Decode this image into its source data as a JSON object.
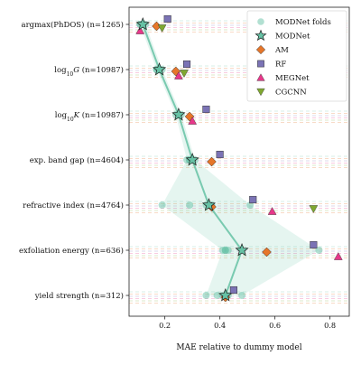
{
  "chart_data": {
    "type": "scatter",
    "title": "",
    "xlabel": "MAE relative to dummy model",
    "ylabel": "",
    "xlim": [
      0.07,
      0.87
    ],
    "x_ticks": [
      0.2,
      0.4,
      0.6,
      0.8
    ],
    "x_tick_labels": [
      "0.2",
      "0.4",
      "0.6",
      "0.8"
    ],
    "grid": false,
    "legend_position": "top-right",
    "categories": [
      "argmax(PhDOS) (n=1265)",
      "log10G (n=10987)",
      "log10K (n=10987)",
      "exp. band gap (n=4604)",
      "refractive index (n=4764)",
      "exfoliation energy (n=636)",
      "yield strength (n=312)"
    ],
    "category_display": [
      {
        "pre": "argmax(PhDOS) (n=1265)",
        "sub": "",
        "post": ""
      },
      {
        "pre": "log",
        "sub": "10",
        "mid": "G",
        "post": " (n=10987)"
      },
      {
        "pre": "log",
        "sub": "10",
        "mid": "K",
        "post": " (n=10987)"
      },
      {
        "pre": "exp. band gap (n=4604)",
        "sub": "",
        "post": ""
      },
      {
        "pre": "refractive index (n=4764)",
        "sub": "",
        "post": ""
      },
      {
        "pre": "exfoliation energy (n=636)",
        "sub": "",
        "post": ""
      },
      {
        "pre": "yield strength (n=312)",
        "sub": "",
        "post": ""
      }
    ],
    "series": [
      {
        "name": "MODNet folds",
        "marker": "circle-faint",
        "color": "#66c2a5",
        "folds": [
          [
            0.11,
            0.12,
            0.13,
            0.12,
            0.11
          ],
          [
            0.17,
            0.18,
            0.19,
            0.18,
            0.17
          ],
          [
            0.24,
            0.25,
            0.26,
            0.25,
            0.25
          ],
          [
            0.28,
            0.29,
            0.31,
            0.3,
            0.29
          ],
          [
            0.19,
            0.29,
            0.35,
            0.37,
            0.51
          ],
          [
            0.41,
            0.42,
            0.43,
            0.42,
            0.76
          ],
          [
            0.35,
            0.39,
            0.41,
            0.43,
            0.48
          ]
        ]
      },
      {
        "name": "MODNet",
        "marker": "star",
        "color": "#66c2a5",
        "values": [
          0.12,
          0.18,
          0.25,
          0.3,
          0.36,
          0.48,
          0.42
        ]
      },
      {
        "name": "AM",
        "marker": "diamond",
        "color": "#e6762a",
        "values": [
          0.17,
          0.24,
          0.29,
          0.37,
          0.37,
          0.57,
          0.42
        ]
      },
      {
        "name": "RF",
        "marker": "square",
        "color": "#7b73b5",
        "values": [
          0.21,
          0.28,
          0.35,
          0.4,
          0.52,
          0.74,
          0.45
        ]
      },
      {
        "name": "MEGNet",
        "marker": "triangle-up",
        "color": "#e7388a",
        "values": [
          0.11,
          0.25,
          0.3,
          null,
          0.59,
          0.83,
          null
        ]
      },
      {
        "name": "CGCNN",
        "marker": "triangle-down",
        "color": "#7fa82f",
        "values": [
          0.19,
          0.27,
          null,
          null,
          0.74,
          null,
          null
        ]
      }
    ]
  },
  "legend": {
    "items": [
      {
        "label": "MODNet folds"
      },
      {
        "label": "MODNet"
      },
      {
        "label": "AM"
      },
      {
        "label": "RF"
      },
      {
        "label": "MEGNet"
      },
      {
        "label": "CGCNN"
      }
    ]
  },
  "colors": {
    "modnet": "#66c2a5",
    "am": "#e6762a",
    "rf": "#7b73b5",
    "megnet": "#e7388a",
    "cgcnn": "#7fa82f",
    "fill": "#66c2a5"
  }
}
